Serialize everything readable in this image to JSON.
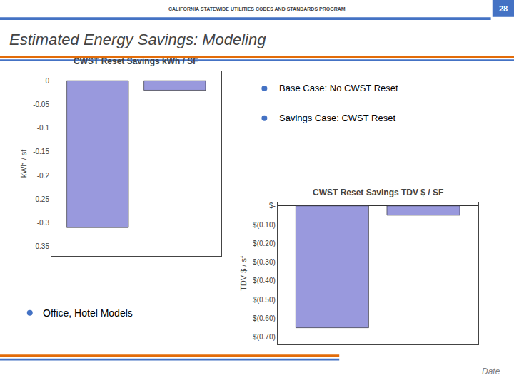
{
  "title": "Estimated Energy Savings: Modeling",
  "annotations": [
    "CALIFORNIA STATEWIDE UTILITIES CODES AND STANDARDS PROGRAM",
    "28",
    "Base Case: No CWST Reset",
    "Savings Case: CWST Reset",
    "Office, Hotel Models",
    "Date"
  ],
  "chart_data": [
    {
      "type": "bar",
      "title": "CWST Reset Savings kWh / SF",
      "ylabel": "kWh / sf",
      "categories": [
        null,
        null
      ],
      "values": [
        -0.31,
        -0.02
      ],
      "color": "#9999DD",
      "ylim": [
        -0.37,
        0.02
      ],
      "yticks": [
        0,
        -0.05,
        -0.1,
        -0.15,
        -0.2,
        -0.25,
        -0.3,
        -0.35
      ],
      "grid": false,
      "tick_labels": "y"
    },
    {
      "type": "bar",
      "title": "CWST Reset Savings TDV $ / SF",
      "ylabel": "TDV $ / sf",
      "categories": [
        null,
        null
      ],
      "values": [
        -0.65,
        -0.05
      ],
      "color": "#9999DD",
      "ylim": [
        -0.74,
        0.02
      ],
      "yticks": [
        {
          "value": 0,
          "label": "$-"
        },
        {
          "value": -0.1,
          "label": "$(0.10)"
        },
        {
          "value": -0.2,
          "label": "$(0.20)"
        },
        {
          "value": -0.3,
          "label": "$(0.30)"
        },
        {
          "value": -0.4,
          "label": "$(0.40)"
        },
        {
          "value": -0.5,
          "label": "$(0.50)"
        },
        {
          "value": -0.6,
          "label": "$(0.60)"
        },
        {
          "value": -0.7,
          "label": "$(0.70)"
        }
      ],
      "grid": false,
      "tick_labels": "y"
    }
  ]
}
